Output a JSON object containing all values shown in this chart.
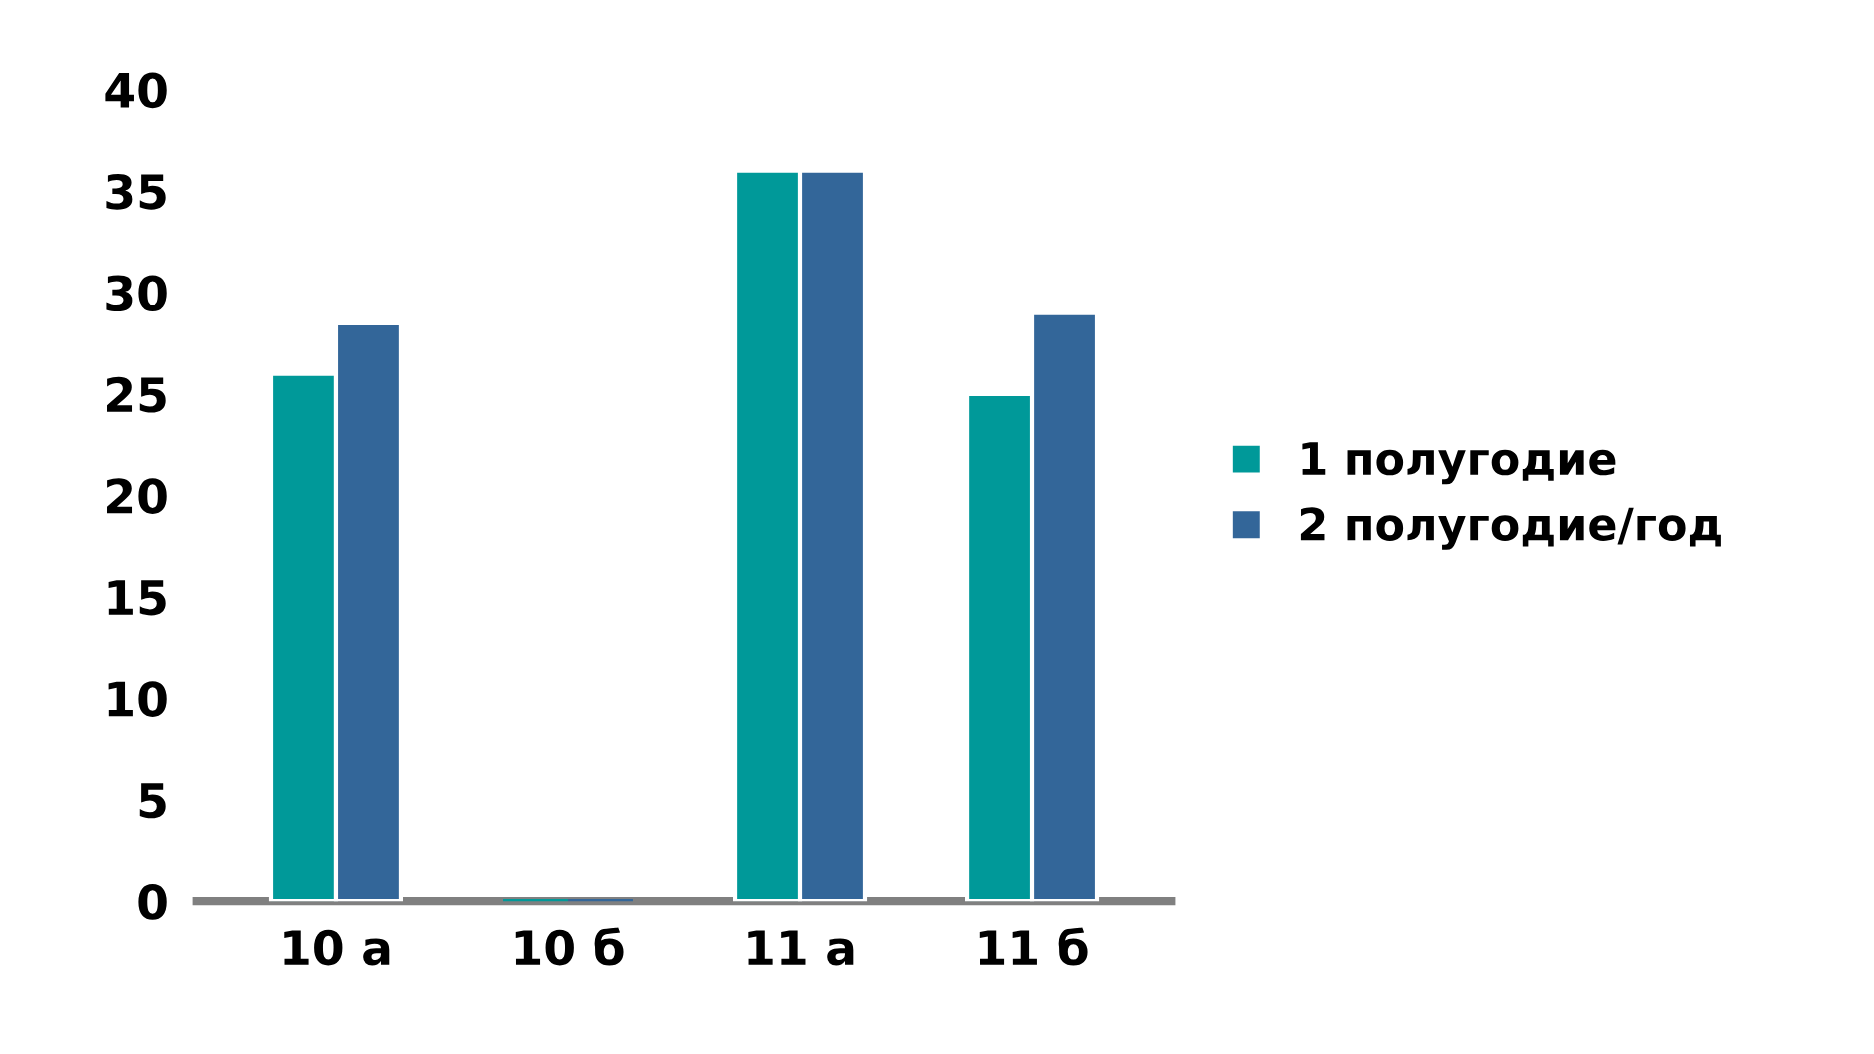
{
  "chart_data": {
    "type": "bar",
    "categories": [
      "10 а",
      "10 б",
      "11 а",
      "11 б"
    ],
    "series": [
      {
        "name": "1 полугодие",
        "color": "#009999",
        "values": [
          26,
          0,
          36,
          25
        ]
      },
      {
        "name": "2 полугодие/год",
        "color": "#336699",
        "values": [
          28.5,
          0,
          36,
          29
        ]
      }
    ],
    "ylim": [
      0,
      40
    ],
    "yticks": [
      0,
      5,
      10,
      15,
      20,
      25,
      30,
      35,
      40
    ],
    "grid": false,
    "legend": "right"
  }
}
